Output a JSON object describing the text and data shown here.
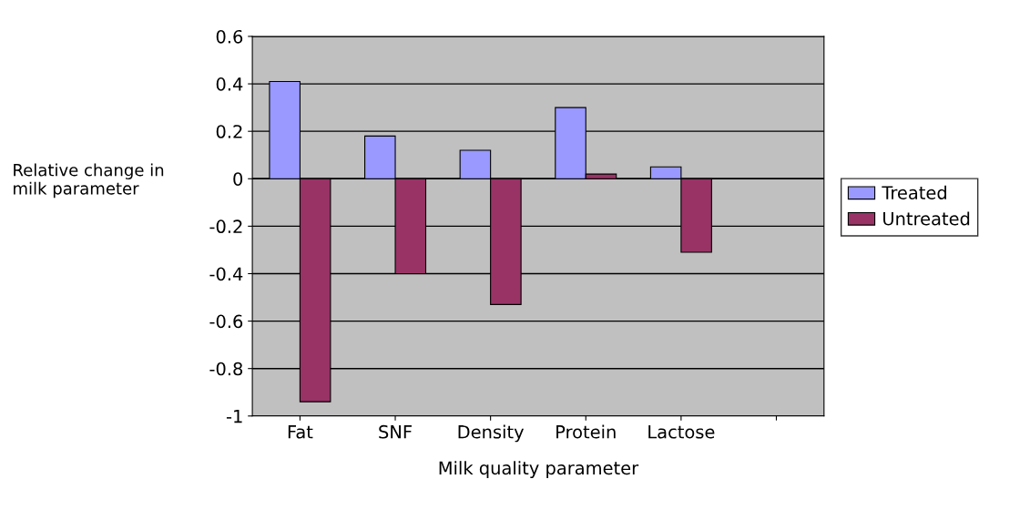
{
  "chart_data": {
    "type": "bar",
    "xlabel": "Milk quality parameter",
    "ylabel": "Relative change in\nmilk parameter",
    "categories": [
      "Fat",
      "SNF",
      "Density",
      "Protein",
      "Lactose",
      null
    ],
    "series": [
      {
        "name": "Treated",
        "color": "#9999ff",
        "values": [
          0.41,
          0.18,
          0.12,
          0.3,
          0.05,
          null
        ]
      },
      {
        "name": "Untreated",
        "color": "#993366",
        "values": [
          -0.94,
          -0.4,
          -0.53,
          0.02,
          -0.31,
          null
        ]
      }
    ],
    "ylim": [
      -1,
      0.6
    ],
    "yticks": [
      -1,
      -0.8,
      -0.6,
      -0.4,
      -0.2,
      0,
      0.2,
      0.4,
      0.6
    ],
    "grid": "y",
    "legend": "right"
  }
}
